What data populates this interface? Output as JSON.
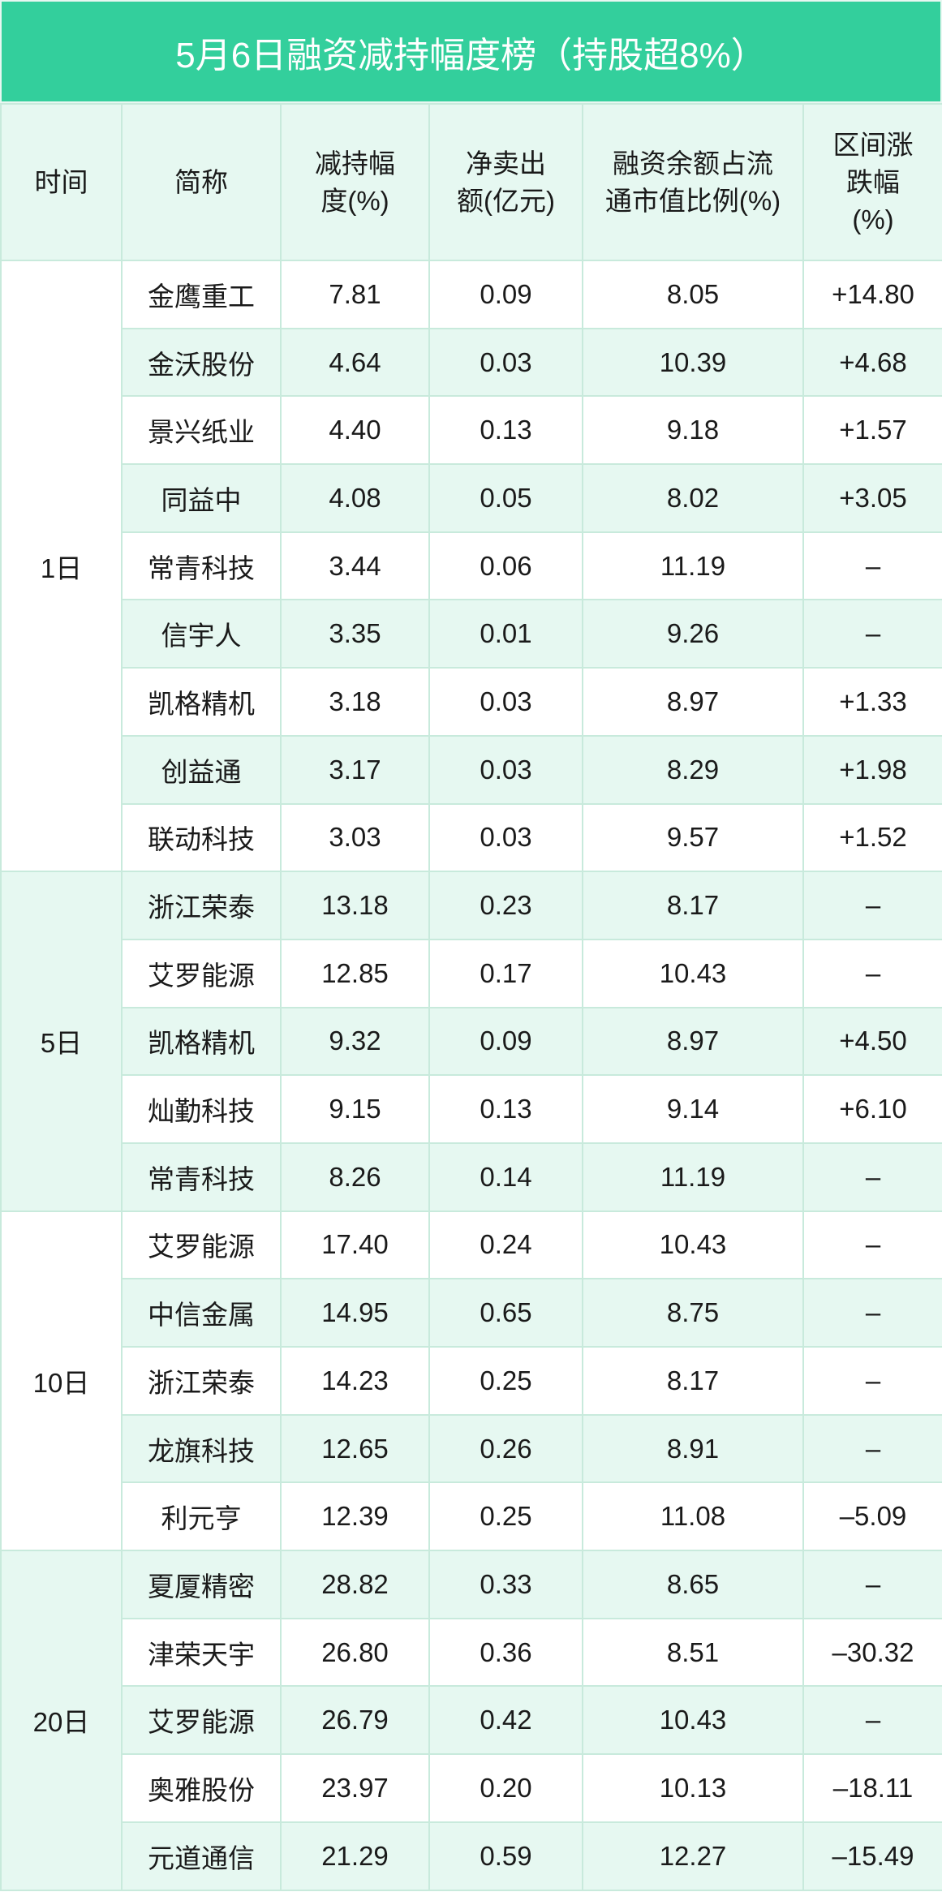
{
  "title": "5月6日融资减持幅度榜（持股超8%）",
  "colors": {
    "title_bg": "#33cf9c",
    "row_alt": "#e6f8f1",
    "border": "#c8eadc"
  },
  "headers": [
    "时间",
    "简称",
    "减持幅度(%)",
    "净卖出额(亿元)",
    "融资余额占流通市值比例(%)",
    "区间涨跌幅(%)"
  ],
  "groups": [
    {
      "date": "1日",
      "rows": [
        [
          "金鹰重工",
          "7.81",
          "0.09",
          "8.05",
          "+14.80"
        ],
        [
          "金沃股份",
          "4.64",
          "0.03",
          "10.39",
          "+4.68"
        ],
        [
          "景兴纸业",
          "4.40",
          "0.13",
          "9.18",
          "+1.57"
        ],
        [
          "同益中",
          "4.08",
          "0.05",
          "8.02",
          "+3.05"
        ],
        [
          "常青科技",
          "3.44",
          "0.06",
          "11.19",
          "–"
        ],
        [
          "信宇人",
          "3.35",
          "0.01",
          "9.26",
          "–"
        ],
        [
          "凯格精机",
          "3.18",
          "0.03",
          "8.97",
          "+1.33"
        ],
        [
          "创益通",
          "3.17",
          "0.03",
          "8.29",
          "+1.98"
        ],
        [
          "联动科技",
          "3.03",
          "0.03",
          "9.57",
          "+1.52"
        ]
      ]
    },
    {
      "date": "5日",
      "rows": [
        [
          "浙江荣泰",
          "13.18",
          "0.23",
          "8.17",
          "–"
        ],
        [
          "艾罗能源",
          "12.85",
          "0.17",
          "10.43",
          "–"
        ],
        [
          "凯格精机",
          "9.32",
          "0.09",
          "8.97",
          "+4.50"
        ],
        [
          "灿勤科技",
          "9.15",
          "0.13",
          "9.14",
          "+6.10"
        ],
        [
          "常青科技",
          "8.26",
          "0.14",
          "11.19",
          "–"
        ]
      ]
    },
    {
      "date": "10日",
      "rows": [
        [
          "艾罗能源",
          "17.40",
          "0.24",
          "10.43",
          "–"
        ],
        [
          "中信金属",
          "14.95",
          "0.65",
          "8.75",
          "–"
        ],
        [
          "浙江荣泰",
          "14.23",
          "0.25",
          "8.17",
          "–"
        ],
        [
          "龙旗科技",
          "12.65",
          "0.26",
          "8.91",
          "–"
        ],
        [
          "利元亨",
          "12.39",
          "0.25",
          "11.08",
          "–5.09"
        ]
      ]
    },
    {
      "date": "20日",
      "rows": [
        [
          "夏厦精密",
          "28.82",
          "0.33",
          "8.65",
          "–"
        ],
        [
          "津荣天宇",
          "26.80",
          "0.36",
          "8.51",
          "–30.32"
        ],
        [
          "艾罗能源",
          "26.79",
          "0.42",
          "10.43",
          "–"
        ],
        [
          "奥雅股份",
          "23.97",
          "0.20",
          "10.13",
          "–18.11"
        ],
        [
          "元道通信",
          "21.29",
          "0.59",
          "12.27",
          "–15.49"
        ]
      ]
    }
  ]
}
